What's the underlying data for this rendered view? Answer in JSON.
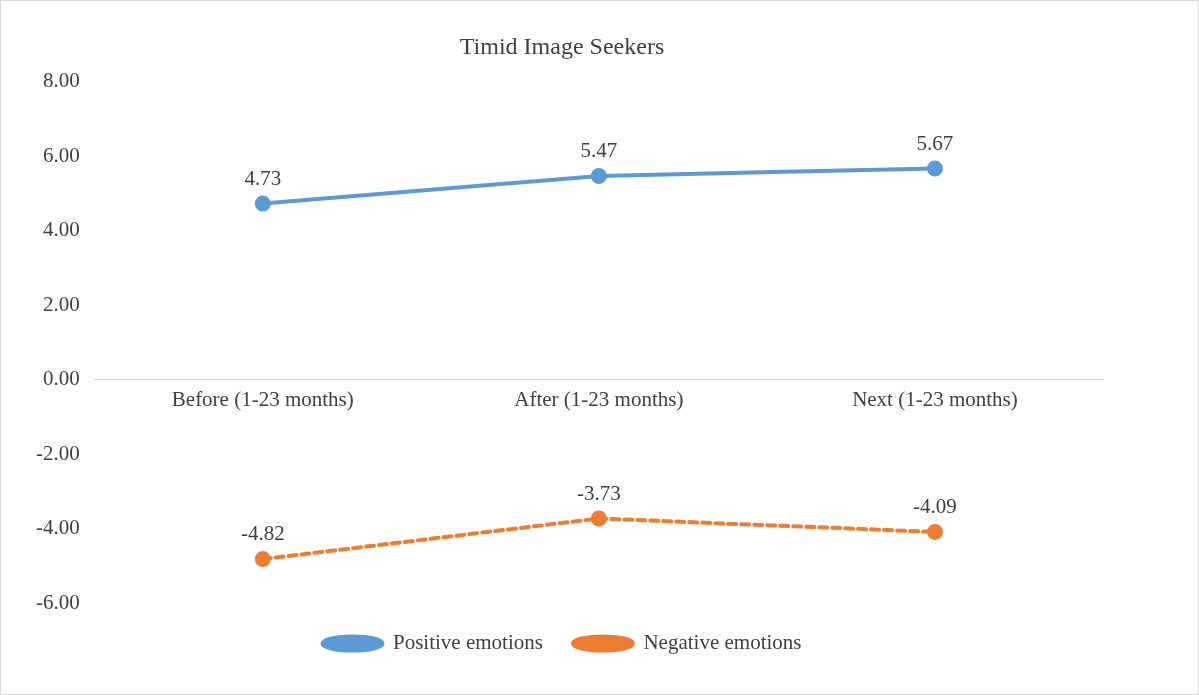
{
  "chart_data": {
    "type": "line",
    "title": "Timid Image Seekers",
    "categories": [
      "Before (1-23 months)",
      "After (1-23 months)",
      "Next (1-23 months)"
    ],
    "series": [
      {
        "name": "Positive emotions",
        "color": "#5b9bd5",
        "values": [
          4.73,
          5.47,
          5.67
        ],
        "line_style": "solid"
      },
      {
        "name": "Negative emotions",
        "color": "#ed7d31",
        "values": [
          -4.82,
          -3.73,
          -4.09
        ],
        "line_style": "dashed"
      }
    ],
    "ylim": [
      -6,
      8
    ],
    "yticks": [
      {
        "value": -6,
        "label": "-6.00"
      },
      {
        "value": -4,
        "label": "-4.00"
      },
      {
        "value": -2,
        "label": "-2.00"
      },
      {
        "value": 0,
        "label": "0.00"
      },
      {
        "value": 2,
        "label": "2.00"
      },
      {
        "value": 4,
        "label": "4.00"
      },
      {
        "value": 6,
        "label": "6.00"
      },
      {
        "value": 8,
        "label": "8.00"
      }
    ],
    "grid": false,
    "legend": "bottom",
    "marker": "circle",
    "data_labels": true
  }
}
